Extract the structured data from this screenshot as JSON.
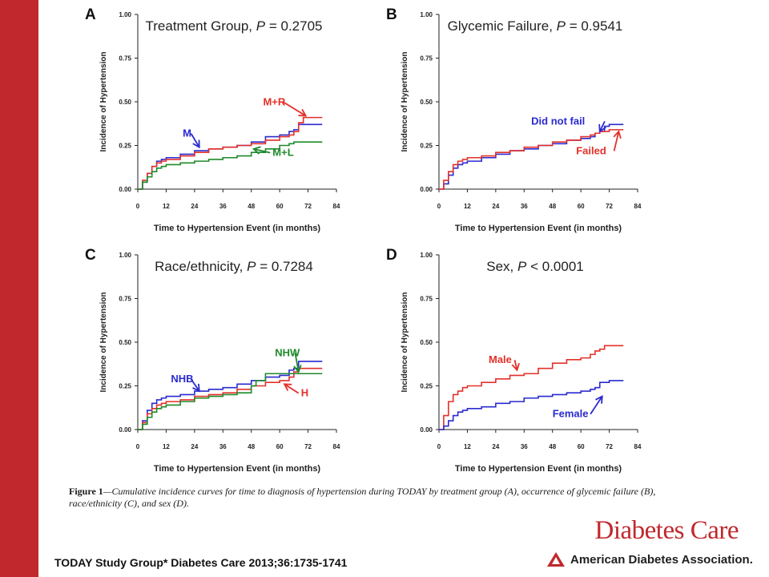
{
  "colors": {
    "sidebar": "#c0282d",
    "blue": "#2a2ad0",
    "red": "#e3302a",
    "green": "#1e8a2a",
    "axis": "#222222"
  },
  "caption": {
    "label": "Figure 1",
    "text": "—Cumulative incidence curves for time to diagnosis of hypertension during TODAY by treatment group (A), occurrence of glycemic failure (B), race/ethnicity (C), and sex (D)."
  },
  "journal": "Diabetes Care",
  "publisher": "American Diabetes Association.",
  "citation": "TODAY Study Group* Diabetes Care 2013;36:1735-1741",
  "chart_data": [
    {
      "type": "line",
      "panel": "A",
      "step": true,
      "title": "Treatment Group, P = 0.2705",
      "xlabel": "Time to Hypertension Event (in months)",
      "ylabel": "Incidence of Hypertension",
      "xlim": [
        0,
        84
      ],
      "ylim": [
        0,
        1
      ],
      "xticks": [
        "0",
        "12",
        "24",
        "36",
        "48",
        "60",
        "72",
        "84"
      ],
      "yticks": [
        "0.00",
        "0.25",
        "0.50",
        "0.75",
        "1.00"
      ],
      "series": [
        {
          "name": "M",
          "color": "blue",
          "x": [
            0,
            2,
            4,
            6,
            8,
            10,
            12,
            18,
            24,
            30,
            36,
            42,
            48,
            54,
            60,
            64,
            66,
            68,
            72,
            78
          ],
          "y": [
            0,
            0.04,
            0.09,
            0.13,
            0.16,
            0.17,
            0.18,
            0.2,
            0.22,
            0.23,
            0.24,
            0.25,
            0.27,
            0.3,
            0.31,
            0.33,
            0.34,
            0.37,
            0.37,
            0.37
          ]
        },
        {
          "name": "M+R",
          "color": "red",
          "x": [
            0,
            2,
            4,
            6,
            8,
            10,
            12,
            18,
            24,
            30,
            36,
            42,
            48,
            54,
            60,
            64,
            66,
            68,
            70,
            72,
            78
          ],
          "y": [
            0,
            0.05,
            0.09,
            0.13,
            0.15,
            0.16,
            0.17,
            0.19,
            0.21,
            0.23,
            0.24,
            0.25,
            0.26,
            0.28,
            0.3,
            0.31,
            0.33,
            0.38,
            0.41,
            0.41,
            0.41
          ]
        },
        {
          "name": "M+L",
          "color": "green",
          "x": [
            0,
            2,
            4,
            6,
            8,
            10,
            12,
            18,
            24,
            30,
            36,
            42,
            48,
            54,
            60,
            64,
            66,
            68,
            72,
            78
          ],
          "y": [
            0,
            0.04,
            0.07,
            0.1,
            0.12,
            0.13,
            0.14,
            0.15,
            0.16,
            0.17,
            0.18,
            0.19,
            0.21,
            0.23,
            0.25,
            0.26,
            0.27,
            0.27,
            0.27,
            0.27
          ]
        }
      ],
      "annotations": [
        {
          "text": "M",
          "color": "blue",
          "x": 19,
          "y": 0.3,
          "ax": 26,
          "ay": 0.24
        },
        {
          "text": "M+R",
          "color": "red",
          "x": 53,
          "y": 0.48,
          "ax": 71,
          "ay": 0.42
        },
        {
          "text": "M+L",
          "color": "green",
          "x": 57,
          "y": 0.19,
          "ax": 49,
          "ay": 0.23
        }
      ]
    },
    {
      "type": "line",
      "panel": "B",
      "step": true,
      "title": "Glycemic Failure, P = 0.9541",
      "xlabel": "Time to Hypertension Event (in months)",
      "ylabel": "Incidence of Hypertension",
      "xlim": [
        0,
        84
      ],
      "ylim": [
        0,
        1
      ],
      "xticks": [
        "0",
        "12",
        "24",
        "36",
        "48",
        "60",
        "72",
        "84"
      ],
      "yticks": [
        "0.00",
        "0.25",
        "0.50",
        "0.75",
        "1.00"
      ],
      "series": [
        {
          "name": "Did not fail",
          "color": "blue",
          "x": [
            0,
            2,
            4,
            6,
            8,
            10,
            12,
            18,
            24,
            30,
            36,
            42,
            48,
            54,
            60,
            64,
            66,
            68,
            70,
            72,
            78
          ],
          "y": [
            0,
            0.03,
            0.08,
            0.12,
            0.14,
            0.15,
            0.16,
            0.18,
            0.2,
            0.22,
            0.23,
            0.25,
            0.26,
            0.28,
            0.29,
            0.3,
            0.32,
            0.33,
            0.36,
            0.37,
            0.37
          ]
        },
        {
          "name": "Failed",
          "color": "red",
          "x": [
            0,
            2,
            4,
            6,
            8,
            10,
            12,
            18,
            24,
            30,
            36,
            42,
            48,
            54,
            60,
            64,
            66,
            68,
            72,
            78
          ],
          "y": [
            0,
            0.05,
            0.1,
            0.14,
            0.16,
            0.17,
            0.18,
            0.19,
            0.21,
            0.22,
            0.24,
            0.25,
            0.27,
            0.28,
            0.3,
            0.31,
            0.32,
            0.33,
            0.34,
            0.34
          ]
        }
      ],
      "annotations": [
        {
          "text": "Did not fail",
          "color": "blue",
          "x": 39,
          "y": 0.37,
          "ax": 68,
          "ay": 0.33
        },
        {
          "text": "Failed",
          "color": "red",
          "x": 58,
          "y": 0.2,
          "ax": 76,
          "ay": 0.33
        }
      ]
    },
    {
      "type": "line",
      "panel": "C",
      "step": true,
      "title": "Race/ethnicity, P = 0.7284",
      "xlabel": "Time to Hypertension Event (in months)",
      "ylabel": "Incidence of Hypertension",
      "xlim": [
        0,
        84
      ],
      "ylim": [
        0,
        1
      ],
      "xticks": [
        "0",
        "12",
        "24",
        "36",
        "48",
        "60",
        "72",
        "84"
      ],
      "yticks": [
        "0.00",
        "0.25",
        "0.50",
        "0.75",
        "1.00"
      ],
      "series": [
        {
          "name": "NHB",
          "color": "blue",
          "x": [
            0,
            2,
            4,
            6,
            8,
            10,
            12,
            18,
            24,
            30,
            36,
            42,
            48,
            54,
            60,
            64,
            66,
            68,
            72,
            78
          ],
          "y": [
            0,
            0.05,
            0.11,
            0.15,
            0.17,
            0.18,
            0.19,
            0.2,
            0.22,
            0.23,
            0.24,
            0.26,
            0.28,
            0.3,
            0.31,
            0.34,
            0.35,
            0.39,
            0.39,
            0.39
          ]
        },
        {
          "name": "H",
          "color": "red",
          "x": [
            0,
            2,
            4,
            6,
            8,
            10,
            12,
            18,
            24,
            30,
            36,
            42,
            48,
            54,
            60,
            64,
            66,
            68,
            72,
            78
          ],
          "y": [
            0,
            0.04,
            0.09,
            0.12,
            0.14,
            0.15,
            0.16,
            0.17,
            0.19,
            0.2,
            0.21,
            0.23,
            0.25,
            0.27,
            0.28,
            0.3,
            0.33,
            0.35,
            0.35,
            0.35
          ]
        },
        {
          "name": "NHW",
          "color": "green",
          "x": [
            0,
            2,
            4,
            6,
            8,
            10,
            12,
            18,
            24,
            30,
            36,
            42,
            48,
            50,
            54,
            60,
            64,
            66,
            68,
            72,
            78
          ],
          "y": [
            0,
            0.03,
            0.07,
            0.1,
            0.12,
            0.13,
            0.14,
            0.16,
            0.18,
            0.19,
            0.2,
            0.21,
            0.25,
            0.28,
            0.32,
            0.32,
            0.32,
            0.32,
            0.32,
            0.32,
            0.32
          ]
        }
      ],
      "annotations": [
        {
          "text": "NHB",
          "color": "blue",
          "x": 14,
          "y": 0.27,
          "ax": 26,
          "ay": 0.22
        },
        {
          "text": "H",
          "color": "red",
          "x": 69,
          "y": 0.19,
          "ax": 62,
          "ay": 0.26
        },
        {
          "text": "NHW",
          "color": "green",
          "x": 58,
          "y": 0.42,
          "ax": 68,
          "ay": 0.33
        }
      ]
    },
    {
      "type": "line",
      "panel": "D",
      "step": true,
      "title": "Sex, P < 0.0001",
      "xlabel": "Time to Hypertension Event (in months)",
      "ylabel": "Incidence of Hypertension",
      "xlim": [
        0,
        84
      ],
      "ylim": [
        0,
        1
      ],
      "xticks": [
        "0",
        "12",
        "24",
        "36",
        "48",
        "60",
        "72",
        "84"
      ],
      "yticks": [
        "0.00",
        "0.25",
        "0.50",
        "0.75",
        "1.00"
      ],
      "series": [
        {
          "name": "Male",
          "color": "red",
          "x": [
            0,
            2,
            4,
            6,
            8,
            10,
            12,
            18,
            24,
            30,
            36,
            42,
            48,
            54,
            60,
            64,
            66,
            68,
            70,
            72,
            78
          ],
          "y": [
            0,
            0.08,
            0.16,
            0.2,
            0.22,
            0.24,
            0.25,
            0.27,
            0.29,
            0.31,
            0.32,
            0.35,
            0.38,
            0.4,
            0.41,
            0.43,
            0.45,
            0.46,
            0.48,
            0.48,
            0.48
          ]
        },
        {
          "name": "Female",
          "color": "blue",
          "x": [
            0,
            2,
            4,
            6,
            8,
            10,
            12,
            18,
            24,
            30,
            36,
            42,
            48,
            54,
            60,
            64,
            66,
            68,
            72,
            78
          ],
          "y": [
            0,
            0.02,
            0.05,
            0.08,
            0.1,
            0.11,
            0.12,
            0.13,
            0.15,
            0.16,
            0.18,
            0.19,
            0.2,
            0.21,
            0.22,
            0.23,
            0.24,
            0.27,
            0.28,
            0.28
          ]
        }
      ],
      "annotations": [
        {
          "text": "Male",
          "color": "red",
          "x": 21,
          "y": 0.38,
          "ax": 33,
          "ay": 0.34
        },
        {
          "text": "Female",
          "color": "blue",
          "x": 48,
          "y": 0.07,
          "ax": 69,
          "ay": 0.19
        }
      ]
    }
  ]
}
